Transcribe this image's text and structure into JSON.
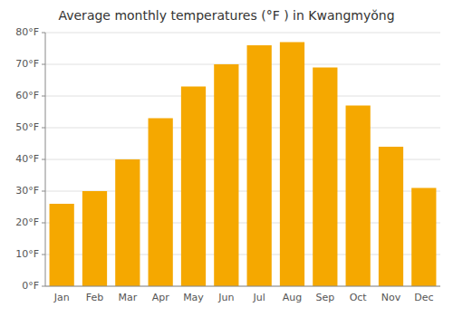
{
  "chart_data": {
    "type": "bar",
    "title": "Average monthly temperatures (°F ) in Kwangmyŏng",
    "categories": [
      "Jan",
      "Feb",
      "Mar",
      "Apr",
      "May",
      "Jun",
      "Jul",
      "Aug",
      "Sep",
      "Oct",
      "Nov",
      "Dec"
    ],
    "values": [
      26,
      30,
      40,
      53,
      63,
      70,
      76,
      77,
      69,
      57,
      44,
      31
    ],
    "color": "#F5A800",
    "ylim": [
      0,
      80
    ],
    "yticks": [
      {
        "value": 0,
        "label": "0°F"
      },
      {
        "value": 10,
        "label": "10°F"
      },
      {
        "value": 20,
        "label": "20°F"
      },
      {
        "value": 30,
        "label": "30°F"
      },
      {
        "value": 40,
        "label": "40°F"
      },
      {
        "value": 50,
        "label": "50°F"
      },
      {
        "value": 60,
        "label": "60°F"
      },
      {
        "value": 70,
        "label": "70°F"
      },
      {
        "value": 80,
        "label": "80°F"
      }
    ],
    "grid": true
  }
}
